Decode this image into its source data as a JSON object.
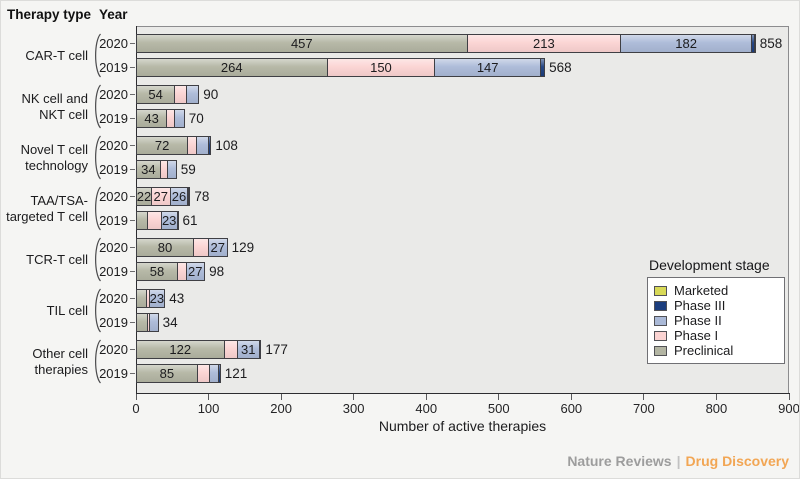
{
  "header": {
    "therapy_type": "Therapy type",
    "year": "Year"
  },
  "footer": {
    "left": "Nature Reviews",
    "sep": "|",
    "right": "Drug Discovery"
  },
  "chart_data": {
    "type": "bar",
    "orientation": "horizontal",
    "stacked": true,
    "xlabel": "Number of active therapies",
    "xlim": [
      0,
      900
    ],
    "xticks": [
      0,
      100,
      200,
      300,
      400,
      500,
      600,
      700,
      800,
      900
    ],
    "grid": false,
    "stage_order": [
      "Preclinical",
      "Phase I",
      "Phase II",
      "Phase III",
      "Marketed"
    ],
    "stage_colors": {
      "Preclinical": "#b3b5a3",
      "Phase I": "#fbd3d2",
      "Phase II": "#aab9d7",
      "Phase III": "#1c3e7e",
      "Marketed": "#d8d957"
    },
    "legend": {
      "title": "Development stage",
      "position": "right-middle",
      "entries": [
        {
          "label": "Marketed",
          "color": "#d8d957"
        },
        {
          "label": "Phase III",
          "color": "#1c3e7e"
        },
        {
          "label": "Phase II",
          "color": "#aab9d7"
        },
        {
          "label": "Phase I",
          "color": "#fbd3d2"
        },
        {
          "label": "Preclinical",
          "color": "#b3b5a3"
        }
      ]
    },
    "groups": [
      {
        "label_lines": [
          "CAR-T cell"
        ],
        "rows": [
          {
            "year": "2020",
            "total": 858,
            "segments": [
              {
                "stage": "Preclinical",
                "value": 457,
                "label": "457"
              },
              {
                "stage": "Phase I",
                "value": 213,
                "label": "213"
              },
              {
                "stage": "Phase II",
                "value": 182,
                "label": "182"
              },
              {
                "stage": "Phase III",
                "value": 5,
                "label": ""
              },
              {
                "stage": "Marketed",
                "value": 1,
                "label": ""
              }
            ]
          },
          {
            "year": "2019",
            "total": 568,
            "segments": [
              {
                "stage": "Preclinical",
                "value": 264,
                "label": "264"
              },
              {
                "stage": "Phase I",
                "value": 150,
                "label": "150"
              },
              {
                "stage": "Phase II",
                "value": 147,
                "label": "147"
              },
              {
                "stage": "Phase III",
                "value": 7,
                "label": ""
              }
            ]
          }
        ]
      },
      {
        "label_lines": [
          "NK cell and",
          "NKT cell"
        ],
        "rows": [
          {
            "year": "2020",
            "total": 90,
            "segments": [
              {
                "stage": "Preclinical",
                "value": 54,
                "label": "54"
              },
              {
                "stage": "Phase I",
                "value": 18,
                "label": ""
              },
              {
                "stage": "Phase II",
                "value": 18,
                "label": ""
              }
            ]
          },
          {
            "year": "2019",
            "total": 70,
            "segments": [
              {
                "stage": "Preclinical",
                "value": 43,
                "label": "43"
              },
              {
                "stage": "Phase I",
                "value": 12,
                "label": ""
              },
              {
                "stage": "Phase II",
                "value": 15,
                "label": ""
              }
            ]
          }
        ]
      },
      {
        "label_lines": [
          "Novel T cell",
          "technology"
        ],
        "rows": [
          {
            "year": "2020",
            "total": 108,
            "segments": [
              {
                "stage": "Preclinical",
                "value": 72,
                "label": "72"
              },
              {
                "stage": "Phase I",
                "value": 13,
                "label": ""
              },
              {
                "stage": "Phase II",
                "value": 18,
                "label": ""
              },
              {
                "stage": "Phase III",
                "value": 5,
                "label": ""
              }
            ]
          },
          {
            "year": "2019",
            "total": 59,
            "segments": [
              {
                "stage": "Preclinical",
                "value": 34,
                "label": "34"
              },
              {
                "stage": "Phase I",
                "value": 11,
                "label": ""
              },
              {
                "stage": "Phase II",
                "value": 14,
                "label": ""
              }
            ]
          }
        ]
      },
      {
        "label_lines": [
          "TAA/TSA-",
          "targeted T cell"
        ],
        "rows": [
          {
            "year": "2020",
            "total": 78,
            "segments": [
              {
                "stage": "Preclinical",
                "value": 22,
                "label": "22"
              },
              {
                "stage": "Phase I",
                "value": 27,
                "label": "27"
              },
              {
                "stage": "Phase II",
                "value": 26,
                "label": "26"
              },
              {
                "stage": "Phase III",
                "value": 2,
                "label": ""
              },
              {
                "stage": "Marketed",
                "value": 1,
                "label": ""
              }
            ]
          },
          {
            "year": "2019",
            "total": 61,
            "segments": [
              {
                "stage": "Preclinical",
                "value": 16,
                "label": ""
              },
              {
                "stage": "Phase I",
                "value": 21,
                "label": ""
              },
              {
                "stage": "Phase II",
                "value": 23,
                "label": "23"
              },
              {
                "stage": "Marketed",
                "value": 1,
                "label": ""
              }
            ]
          }
        ]
      },
      {
        "label_lines": [
          "TCR-T cell"
        ],
        "rows": [
          {
            "year": "2020",
            "total": 129,
            "segments": [
              {
                "stage": "Preclinical",
                "value": 80,
                "label": "80"
              },
              {
                "stage": "Phase I",
                "value": 22,
                "label": ""
              },
              {
                "stage": "Phase II",
                "value": 27,
                "label": "27"
              }
            ]
          },
          {
            "year": "2019",
            "total": 98,
            "segments": [
              {
                "stage": "Preclinical",
                "value": 58,
                "label": "58"
              },
              {
                "stage": "Phase I",
                "value": 13,
                "label": ""
              },
              {
                "stage": "Phase II",
                "value": 27,
                "label": "27"
              }
            ]
          }
        ]
      },
      {
        "label_lines": [
          "TIL cell"
        ],
        "rows": [
          {
            "year": "2020",
            "total": 43,
            "segments": [
              {
                "stage": "Preclinical",
                "value": 15,
                "label": ""
              },
              {
                "stage": "Phase I",
                "value": 5,
                "label": ""
              },
              {
                "stage": "Phase II",
                "value": 23,
                "label": "23"
              }
            ]
          },
          {
            "year": "2019",
            "total": 34,
            "segments": [
              {
                "stage": "Preclinical",
                "value": 17,
                "label": ""
              },
              {
                "stage": "Phase I",
                "value": 4,
                "label": ""
              },
              {
                "stage": "Phase II",
                "value": 13,
                "label": ""
              }
            ]
          }
        ]
      },
      {
        "label_lines": [
          "Other cell",
          "therapies"
        ],
        "rows": [
          {
            "year": "2020",
            "total": 177,
            "segments": [
              {
                "stage": "Preclinical",
                "value": 122,
                "label": "122"
              },
              {
                "stage": "Phase I",
                "value": 20,
                "label": ""
              },
              {
                "stage": "Phase II",
                "value": 31,
                "label": "31"
              },
              {
                "stage": "Phase III",
                "value": 4,
                "label": ""
              }
            ]
          },
          {
            "year": "2019",
            "total": 121,
            "segments": [
              {
                "stage": "Preclinical",
                "value": 85,
                "label": "85"
              },
              {
                "stage": "Phase I",
                "value": 18,
                "label": ""
              },
              {
                "stage": "Phase II",
                "value": 14,
                "label": ""
              },
              {
                "stage": "Phase III",
                "value": 4,
                "label": ""
              }
            ]
          }
        ]
      }
    ]
  }
}
